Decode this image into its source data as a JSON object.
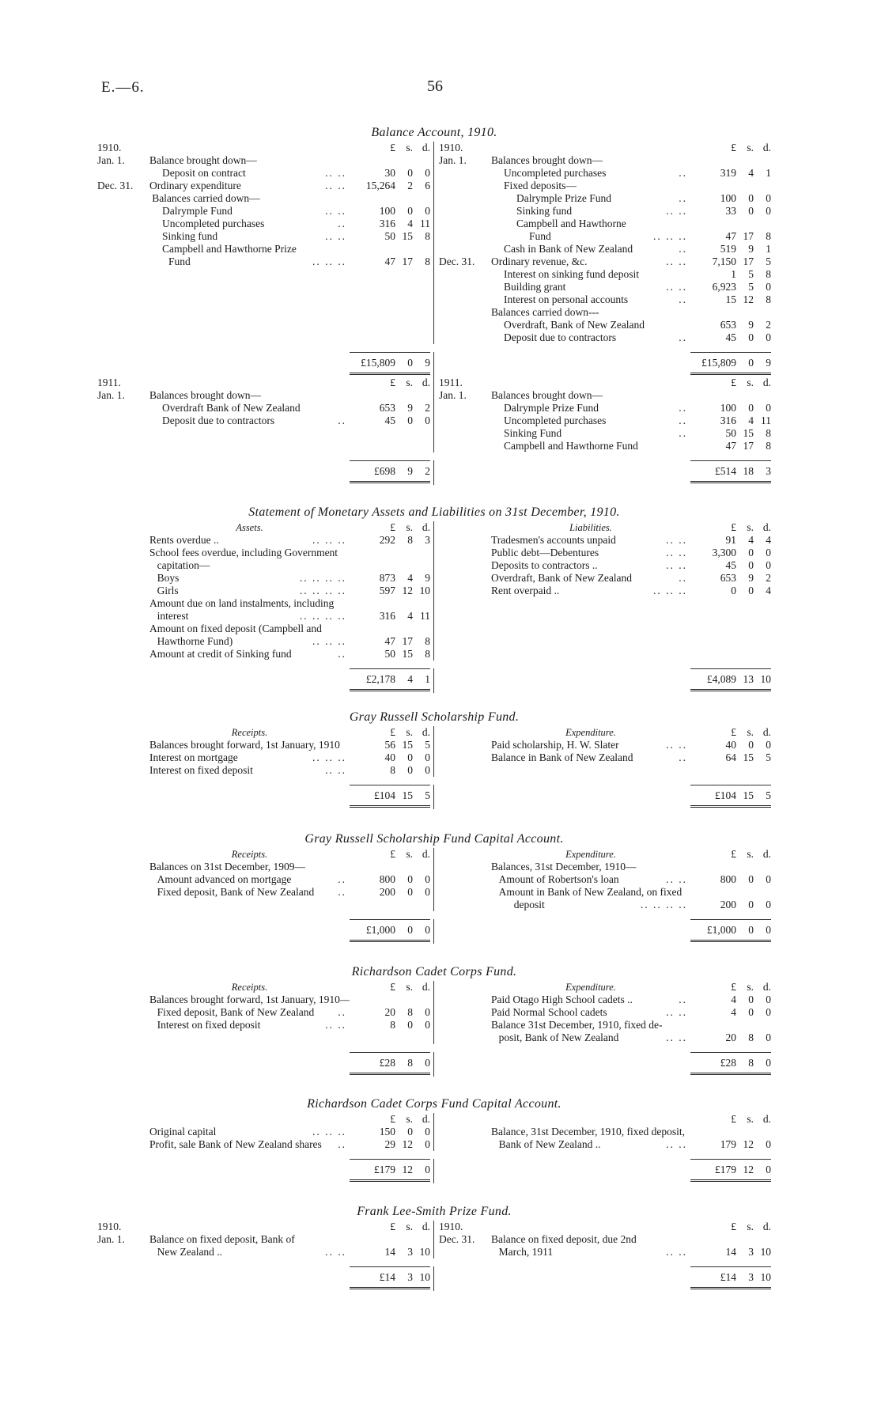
{
  "header": {
    "code": "E.—6.",
    "page": "56"
  },
  "sections": [
    {
      "title": "Balance Account, 1910.",
      "left": {
        "date": "1910.",
        "heading": "",
        "cur": [
          "£",
          "s.",
          "d."
        ],
        "rows": [
          {
            "date": "Jan. 1.",
            "text": "Balance brought down—",
            "level": 0
          },
          {
            "text": "Deposit on contract",
            "level": 1,
            "leader": "..  ..",
            "l": "30",
            "s": "0",
            "d": "0"
          },
          {
            "date": "Dec. 31.",
            "text": "Ordinary expenditure",
            "level": 0,
            "leader": "..  ..",
            "l": "15,264",
            "s": "2",
            "d": "6"
          },
          {
            "text": "Balances carried down—",
            "level": 0.2
          },
          {
            "text": "Dalrymple Fund",
            "level": 1,
            "leader": "..  ..",
            "l": "100",
            "s": "0",
            "d": "0"
          },
          {
            "text": "Uncompleted purchases",
            "level": 1,
            "leader": "..",
            "l": "316",
            "s": "4",
            "d": "11"
          },
          {
            "text": "Sinking fund",
            "level": 1,
            "leader": "..  ..",
            "l": "50",
            "s": "15",
            "d": "8"
          },
          {
            "text": "Campbell and Hawthorne Prize",
            "level": 1
          },
          {
            "text": "Fund",
            "level": 1.5,
            "leader": "..  ..  ..",
            "l": "47",
            "s": "17",
            "d": "8"
          }
        ],
        "total": {
          "l": "£15,809",
          "s": "0",
          "d": "9"
        }
      },
      "right": {
        "date": "1910.",
        "heading": "",
        "cur": [
          "£",
          "s.",
          "d."
        ],
        "rows": [
          {
            "date": "Jan. 1.",
            "text": "Balances brought down—",
            "level": 0
          },
          {
            "text": "Uncompleted purchases",
            "level": 1,
            "leader": "..",
            "l": "319",
            "s": "4",
            "d": "1"
          },
          {
            "text": "Fixed deposits—",
            "level": 1
          },
          {
            "text": "Dalrymple Prize Fund",
            "level": 2,
            "leader": "..",
            "l": "100",
            "s": "0",
            "d": "0"
          },
          {
            "text": "Sinking fund",
            "level": 2,
            "leader": "..  ..",
            "l": "33",
            "s": "0",
            "d": "0"
          },
          {
            "text": "Campbell  and  Hawthorne",
            "level": 2
          },
          {
            "text": "Fund",
            "level": 3,
            "leader": "..  ..  ..",
            "l": "47",
            "s": "17",
            "d": "8"
          },
          {
            "text": "Cash in Bank of New Zealand",
            "level": 1,
            "leader": "..",
            "l": "519",
            "s": "9",
            "d": "1"
          },
          {
            "date": "Dec. 31.",
            "text": "Ordinary revenue, &c.",
            "level": 0,
            "leader": "..  ..",
            "l": "7,150",
            "s": "17",
            "d": "5"
          },
          {
            "text": "Interest on sinking fund deposit",
            "level": 1,
            "l": "1",
            "s": "5",
            "d": "8"
          },
          {
            "text": "Building grant",
            "level": 1,
            "leader": "..  ..",
            "l": "6,923",
            "s": "5",
            "d": "0"
          },
          {
            "text": "Interest on personal accounts",
            "level": 1,
            "leader": "..",
            "l": "15",
            "s": "12",
            "d": "8"
          },
          {
            "text": "Balances carried down---",
            "level": 0
          },
          {
            "text": "Overdraft, Bank of New Zealand",
            "level": 1,
            "l": "653",
            "s": "9",
            "d": "2"
          },
          {
            "text": "Deposit due to contractors",
            "level": 1,
            "leader": "..",
            "l": "45",
            "s": "0",
            "d": "0"
          }
        ],
        "total": {
          "l": "£15,809",
          "s": "0",
          "d": "9"
        }
      }
    },
    {
      "title": "",
      "left": {
        "date": "1911.",
        "heading": "",
        "cur": [
          "£",
          "s.",
          "d."
        ],
        "rows": [
          {
            "date": "Jan. 1.",
            "text": "Balances brought down—",
            "level": 0
          },
          {
            "text": "Overdraft Bank of New Zealand",
            "level": 1,
            "l": "653",
            "s": "9",
            "d": "2"
          },
          {
            "text": "Deposit due to contractors",
            "level": 1,
            "leader": "..",
            "l": "45",
            "s": "0",
            "d": "0"
          }
        ],
        "total": {
          "l": "£698",
          "s": "9",
          "d": "2"
        }
      },
      "right": {
        "date": "1911.",
        "heading": "",
        "cur": [
          "£",
          "s.",
          "d."
        ],
        "rows": [
          {
            "date": "Jan. 1.",
            "text": "Balances brought down—",
            "level": 0
          },
          {
            "text": "Dalrymple Prize Fund",
            "level": 1,
            "leader": "..",
            "l": "100",
            "s": "0",
            "d": "0"
          },
          {
            "text": "Uncompleted purchases",
            "level": 1,
            "leader": "..",
            "l": "316",
            "s": "4",
            "d": "11"
          },
          {
            "text": "Sinking Fund",
            "level": 1,
            "leader": "..",
            "l": "50",
            "s": "15",
            "d": "8"
          },
          {
            "text": "Campbell and Hawthorne Fund",
            "level": 1,
            "l": "47",
            "s": "17",
            "d": "8"
          }
        ],
        "total": {
          "l": "£514",
          "s": "18",
          "d": "3"
        }
      }
    },
    {
      "title": "Statement of Monetary Assets and Liabilities on 31st December, 1910.",
      "left": {
        "date": "",
        "heading": "Assets.",
        "cur": [
          "£",
          "s.",
          "d."
        ],
        "rows": [
          {
            "text": "Rents overdue ..",
            "level": 0,
            "leader": "..  ..  ..",
            "l": "292",
            "s": "8",
            "d": "3"
          },
          {
            "text": "School fees overdue, including Government",
            "level": 0
          },
          {
            "text": "capitation—",
            "level": 0.6
          },
          {
            "text": "Boys",
            "level": 0.6,
            "leader": "..  ..  ..  ..",
            "l": "873",
            "s": "4",
            "d": "9"
          },
          {
            "text": "Girls",
            "level": 0.6,
            "leader": "..  ..  ..  ..",
            "l": "597",
            "s": "12",
            "d": "10"
          },
          {
            "text": "Amount due on land instalments, including",
            "level": 0
          },
          {
            "text": "interest",
            "level": 0.6,
            "leader": "..  ..  ..  ..",
            "l": "316",
            "s": "4",
            "d": "11"
          },
          {
            "text": "Amount on fixed deposit (Campbell and",
            "level": 0
          },
          {
            "text": "Hawthorne Fund)",
            "level": 0.6,
            "leader": "..  ..  ..",
            "l": "47",
            "s": "17",
            "d": "8"
          },
          {
            "text": "Amount at credit of Sinking fund",
            "level": 0,
            "leader": "..",
            "l": "50",
            "s": "15",
            "d": "8"
          }
        ],
        "total": {
          "l": "£2,178",
          "s": "4",
          "d": "1"
        }
      },
      "right": {
        "date": "",
        "heading": "Liabilities.",
        "cur": [
          "£",
          "s.",
          "d."
        ],
        "rows": [
          {
            "text": "Tradesmen's accounts unpaid",
            "level": 0,
            "leader": "..  ..",
            "l": "91",
            "s": "4",
            "d": "4"
          },
          {
            "text": "Public debt—Debentures",
            "level": 0,
            "leader": "..  ..",
            "l": "3,300",
            "s": "0",
            "d": "0"
          },
          {
            "text": "Deposits to contractors ..",
            "level": 0,
            "leader": "..  ..",
            "l": "45",
            "s": "0",
            "d": "0"
          },
          {
            "text": "Overdraft, Bank of New Zealand",
            "level": 0,
            "leader": "..",
            "l": "653",
            "s": "9",
            "d": "2"
          },
          {
            "text": "Rent overpaid ..",
            "level": 0,
            "leader": "..  ..  ..",
            "l": "0",
            "s": "0",
            "d": "4"
          }
        ],
        "total": {
          "l": "£4,089",
          "s": "13",
          "d": "10"
        }
      }
    },
    {
      "title": "Gray Russell Scholarship Fund.",
      "left": {
        "date": "",
        "heading": "Receipts.",
        "cur": [
          "£",
          "s.",
          "d."
        ],
        "rows": [
          {
            "text": "Balances brought forward, 1st January, 1910",
            "level": 0,
            "l": "56",
            "s": "15",
            "d": "5"
          },
          {
            "text": "Interest on mortgage",
            "level": 0,
            "leader": "..  ..  ..",
            "l": "40",
            "s": "0",
            "d": "0"
          },
          {
            "text": "Interest on fixed deposit",
            "level": 0,
            "leader": "..  ..",
            "l": "8",
            "s": "0",
            "d": "0"
          }
        ],
        "total": {
          "l": "£104",
          "s": "15",
          "d": "5"
        }
      },
      "right": {
        "date": "",
        "heading": "Expenditure.",
        "cur": [
          "£",
          "s.",
          "d."
        ],
        "rows": [
          {
            "text": "Paid scholarship, H. W. Slater",
            "level": 0,
            "leader": "..  ..",
            "l": "40",
            "s": "0",
            "d": "0"
          },
          {
            "text": "Balance in Bank of New Zealand",
            "level": 0,
            "leader": "..",
            "l": "64",
            "s": "15",
            "d": "5"
          }
        ],
        "total": {
          "l": "£104",
          "s": "15",
          "d": "5"
        }
      }
    },
    {
      "title": "Gray Russell Scholarship Fund Capital Account.",
      "left": {
        "date": "",
        "heading": "Receipts.",
        "cur": [
          "£",
          "s.",
          "d."
        ],
        "rows": [
          {
            "text": "Balances on 31st December, 1909—",
            "level": 0
          },
          {
            "text": "Amount advanced on mortgage",
            "level": 0.6,
            "leader": "..",
            "l": "800",
            "s": "0",
            "d": "0"
          },
          {
            "text": "Fixed deposit, Bank of New Zealand",
            "level": 0.6,
            "leader": "..",
            "l": "200",
            "s": "0",
            "d": "0"
          }
        ],
        "total": {
          "l": "£1,000",
          "s": "0",
          "d": "0"
        }
      },
      "right": {
        "date": "",
        "heading": "Expenditure.",
        "cur": [
          "£",
          "s.",
          "d."
        ],
        "rows": [
          {
            "text": "Balances, 31st December, 1910—",
            "level": 0
          },
          {
            "text": "Amount of Robertson's loan",
            "level": 0.6,
            "leader": "..  ..",
            "l": "800",
            "s": "0",
            "d": "0"
          },
          {
            "text": "Amount in Bank of New Zealand, on fixed",
            "level": 0.6
          },
          {
            "text": "deposit",
            "level": 1.8,
            "leader": "..  ..  ..  ..",
            "l": "200",
            "s": "0",
            "d": "0"
          }
        ],
        "total": {
          "l": "£1,000",
          "s": "0",
          "d": "0"
        }
      }
    },
    {
      "title": "Richardson Cadet Corps Fund.",
      "left": {
        "date": "",
        "heading": "Receipts.",
        "cur": [
          "£",
          "s.",
          "d."
        ],
        "rows": [
          {
            "text": "Balances brought forward, 1st January, 1910—",
            "level": 0
          },
          {
            "text": "Fixed deposit, Bank of New Zealand",
            "level": 0.6,
            "leader": "..",
            "l": "20",
            "s": "8",
            "d": "0"
          },
          {
            "text": "Interest on fixed deposit",
            "level": 0.6,
            "leader": "..  ..",
            "l": "8",
            "s": "0",
            "d": "0"
          }
        ],
        "total": {
          "l": "£28",
          "s": "8",
          "d": "0"
        }
      },
      "right": {
        "date": "",
        "heading": "Expenditure.",
        "cur": [
          "£",
          "s.",
          "d."
        ],
        "rows": [
          {
            "text": "Paid Otago High School cadets ..",
            "level": 0,
            "leader": "..",
            "l": "4",
            "s": "0",
            "d": "0"
          },
          {
            "text": "Paid Normal School cadets",
            "level": 0,
            "leader": "..  ..",
            "l": "4",
            "s": "0",
            "d": "0"
          },
          {
            "text": "Balance 31st December, 1910, fixed de-",
            "level": 0
          },
          {
            "text": "posit, Bank of New Zealand",
            "level": 0.6,
            "leader": "..  ..",
            "l": "20",
            "s": "8",
            "d": "0"
          }
        ],
        "total": {
          "l": "£28",
          "s": "8",
          "d": "0"
        }
      }
    },
    {
      "title": "Richardson Cadet Corps Fund Capital Account.",
      "left": {
        "date": "",
        "heading": "",
        "cur": [
          "£",
          "s.",
          "d."
        ],
        "rows": [
          {
            "text": "Original capital",
            "level": 0,
            "leader": "..  ..  ..",
            "l": "150",
            "s": "0",
            "d": "0"
          },
          {
            "text": "Profit, sale Bank of New Zealand shares",
            "level": 0,
            "leader": "..",
            "l": "29",
            "s": "12",
            "d": "0"
          }
        ],
        "total": {
          "l": "£179",
          "s": "12",
          "d": "0"
        }
      },
      "right": {
        "date": "",
        "heading": "",
        "cur": [
          "£",
          "s.",
          "d."
        ],
        "rows": [
          {
            "text": "Balance, 31st December, 1910, fixed deposit,",
            "level": 0
          },
          {
            "text": "Bank of New Zealand ..",
            "level": 0.6,
            "leader": "..  ..",
            "l": "179",
            "s": "12",
            "d": "0"
          }
        ],
        "total": {
          "l": "£179",
          "s": "12",
          "d": "0"
        }
      }
    },
    {
      "title": "Frank Lee-Smith Prize Fund.",
      "left": {
        "date": "1910.",
        "heading": "",
        "cur": [
          "£",
          "s.",
          "d."
        ],
        "rows": [
          {
            "date": "Jan. 1.",
            "text": "Balance on fixed deposit, Bank of",
            "level": 0
          },
          {
            "text": "New Zealand ..",
            "level": 0.6,
            "leader": "..  ..",
            "l": "14",
            "s": "3",
            "d": "10"
          }
        ],
        "total": {
          "l": "£14",
          "s": "3",
          "d": "10"
        }
      },
      "right": {
        "date": "1910.",
        "heading": "",
        "cur": [
          "£",
          "s.",
          "d."
        ],
        "rows": [
          {
            "date": "Dec. 31.",
            "text": "Balance on fixed deposit, due 2nd",
            "level": 0
          },
          {
            "text": "March, 1911",
            "level": 0.6,
            "leader": "..  ..",
            "l": "14",
            "s": "3",
            "d": "10"
          }
        ],
        "total": {
          "l": "£14",
          "s": "3",
          "d": "10"
        }
      }
    }
  ]
}
